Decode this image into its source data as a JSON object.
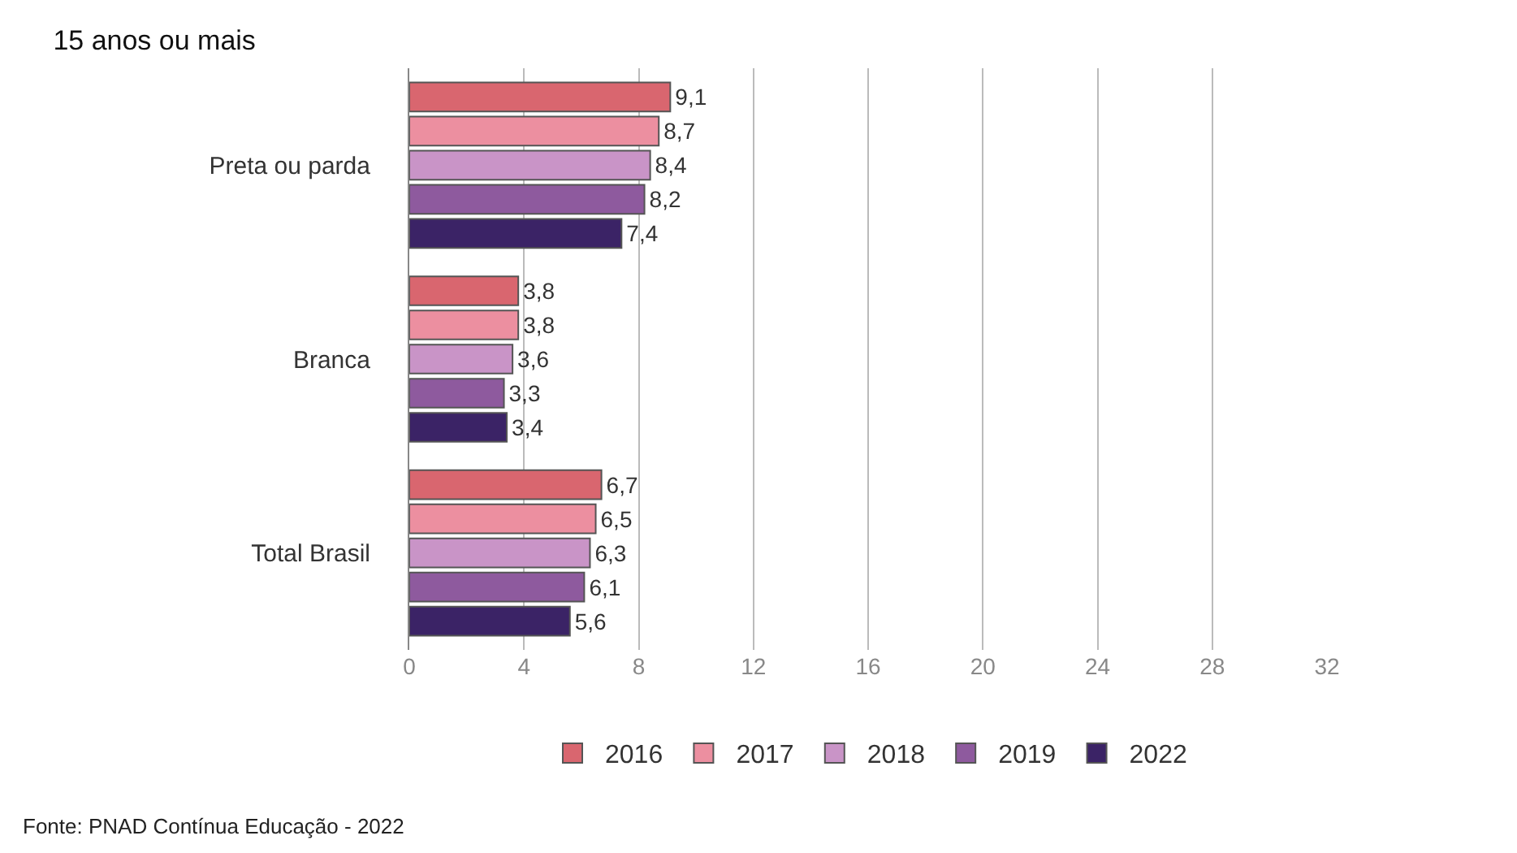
{
  "chart_data": {
    "type": "bar",
    "orientation": "horizontal",
    "title": "15 anos ou mais",
    "categories": [
      "Preta ou parda",
      "Branca",
      "Total Brasil"
    ],
    "series": [
      {
        "name": "2016",
        "color": "#d9666f",
        "values": [
          9.1,
          3.8,
          6.7
        ],
        "value_labels": [
          "9,1",
          "3,8",
          "6,7"
        ]
      },
      {
        "name": "2017",
        "color": "#ec8fa0",
        "values": [
          8.7,
          3.8,
          6.5
        ],
        "value_labels": [
          "8,7",
          "3,8",
          "6,5"
        ]
      },
      {
        "name": "2018",
        "color": "#c994c7",
        "values": [
          8.4,
          3.6,
          6.3
        ],
        "value_labels": [
          "8,4",
          "3,6",
          "6,3"
        ]
      },
      {
        "name": "2019",
        "color": "#8e5a9e",
        "values": [
          8.2,
          3.3,
          6.1
        ],
        "value_labels": [
          "8,2",
          "3,3",
          "6,1"
        ]
      },
      {
        "name": "2022",
        "color": "#3b2366",
        "values": [
          7.4,
          3.4,
          5.6
        ],
        "value_labels": [
          "7,4",
          "3,4",
          "5,6"
        ]
      }
    ],
    "xlim": [
      0,
      32
    ],
    "xticks": [
      0,
      4,
      8,
      12,
      16,
      20,
      24,
      28,
      32
    ],
    "grid": "x",
    "legend": "bottom",
    "annotations": [
      "Fonte: PNAD Contínua Educação - 2022"
    ]
  }
}
